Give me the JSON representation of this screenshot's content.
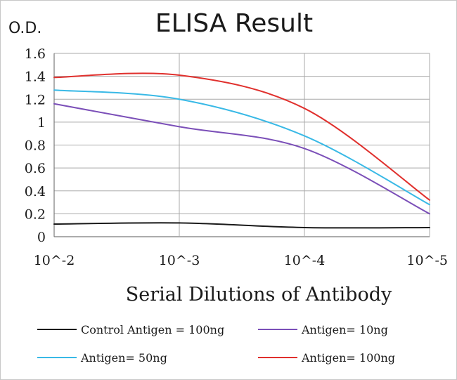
{
  "chart_data": {
    "type": "line",
    "title": "ELISA Result",
    "ylabel": "O.D.",
    "xlabel": "Serial Dilutions of Antibody",
    "categories": [
      "10^-2",
      "10^-3",
      "10^-4",
      "10^-5"
    ],
    "ylim": [
      0,
      1.6
    ],
    "yticks": [
      "0",
      "0.2",
      "0.4",
      "0.6",
      "0.8",
      "1",
      "1.2",
      "1.4",
      "1.6"
    ],
    "grid": true,
    "legend_position": "bottom",
    "series": [
      {
        "name": "Control Antigen = 100ng",
        "color": "#1a1a1a",
        "values": [
          0.11,
          0.12,
          0.08,
          0.08
        ]
      },
      {
        "name": "Antigen= 10ng",
        "color": "#7b4fb8",
        "values": [
          1.16,
          0.96,
          0.77,
          0.2
        ]
      },
      {
        "name": "Antigen= 50ng",
        "color": "#39b9e6",
        "values": [
          1.28,
          1.2,
          0.88,
          0.28
        ]
      },
      {
        "name": "Antigen= 100ng",
        "color": "#e0302d",
        "values": [
          1.39,
          1.41,
          1.12,
          0.32
        ]
      }
    ]
  }
}
